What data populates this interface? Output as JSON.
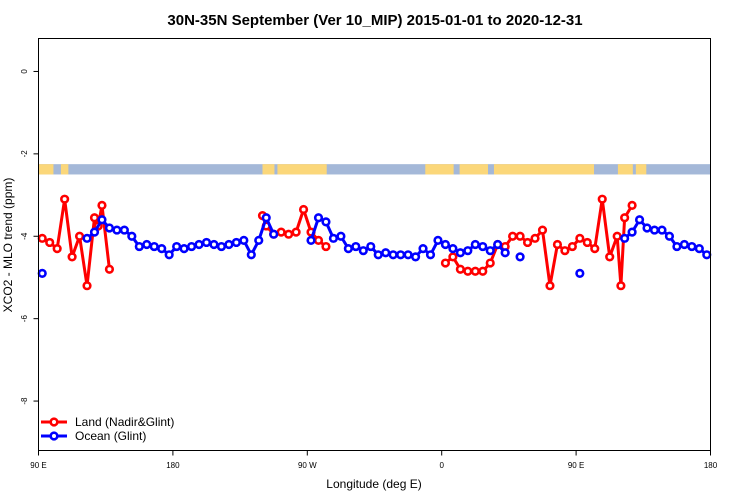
{
  "chart_data": {
    "type": "line",
    "title": "30N-35N September (Ver 10_MIP)   2015-01-01 to 2020-12-31",
    "xlabel": "Longitude (deg E)",
    "ylabel": "XCO2 - MLO trend (ppm)",
    "xlim": [
      90,
      540
    ],
    "ylim": [
      -9.2,
      0.8
    ],
    "x_ticks": [
      {
        "value": 90,
        "label": "90 E"
      },
      {
        "value": 180,
        "label": "180"
      },
      {
        "value": 270,
        "label": "90 W"
      },
      {
        "value": 360,
        "label": "0"
      },
      {
        "value": 450,
        "label": "90 E"
      },
      {
        "value": 540,
        "label": "180"
      }
    ],
    "y_ticks": [
      {
        "value": 0,
        "label": "0"
      },
      {
        "value": -2,
        "label": "-2"
      },
      {
        "value": -4,
        "label": "-4"
      },
      {
        "value": -6,
        "label": "-6"
      },
      {
        "value": -8,
        "label": "-8"
      }
    ],
    "grid": false,
    "legend_position": "bottom-left",
    "land_mask_band": {
      "y_range": [
        -2.5,
        -2.25
      ],
      "ocean_color": "#a4b8d8",
      "land_color": "#fbd77a",
      "land_x_ranges": [
        [
          90,
          100
        ],
        [
          105,
          110
        ],
        [
          240,
          248
        ],
        [
          250,
          283
        ],
        [
          349,
          368
        ],
        [
          372,
          391
        ],
        [
          395,
          462
        ],
        [
          478,
          488
        ],
        [
          490,
          497
        ]
      ]
    },
    "series": [
      {
        "name": "Land (Nadir&Glint)",
        "color": "#ff0000",
        "x": [
          92.5,
          97.5,
          102.5,
          107.5,
          112.5,
          117.5,
          122.5,
          127.5,
          130,
          132.5,
          137.5,
          240,
          242.5,
          247.5,
          252.5,
          257.5,
          262.5,
          267.5,
          272.5,
          277.5,
          282.5,
          362.5,
          367.5,
          372.5,
          377.5,
          382.5,
          387.5,
          392.5,
          397.5,
          402.5,
          407.5,
          412.5,
          417.5,
          422.5,
          427.5,
          432.5,
          437.5,
          442.5,
          447.5,
          452.5,
          457.5,
          462.5,
          467.5,
          472.5,
          477.5,
          480,
          482.5,
          487.5
        ],
        "y": [
          -4.05,
          -4.15,
          -4.3,
          -3.1,
          -4.5,
          -4.0,
          -5.2,
          -3.55,
          -3.75,
          -3.25,
          -4.8,
          -3.5,
          -3.75,
          -3.95,
          -3.9,
          -3.95,
          -3.9,
          -3.35,
          -3.9,
          -4.1,
          -4.25,
          -4.65,
          -4.5,
          -4.8,
          -4.85,
          -4.85,
          -4.85,
          -4.65,
          -4.2,
          -4.25,
          -4.0,
          -4.0,
          -4.15,
          -4.05,
          -3.85,
          -5.2,
          -4.2,
          -4.35,
          -4.25,
          -4.05,
          -4.15,
          -4.3,
          -3.1,
          -4.5,
          -4.0,
          -5.2,
          -3.55,
          -3.25
        ]
      },
      {
        "name": "Ocean (Glint)",
        "color": "#0000ff",
        "x": [
          92.5,
          122.5,
          127.5,
          132.5,
          137.5,
          142.5,
          147.5,
          152.5,
          157.5,
          162.5,
          167.5,
          172.5,
          177.5,
          182.5,
          187.5,
          192.5,
          197.5,
          202.5,
          207.5,
          212.5,
          217.5,
          222.5,
          227.5,
          232.5,
          237.5,
          242.5,
          247.5,
          272.5,
          277.5,
          282.5,
          287.5,
          292.5,
          297.5,
          302.5,
          307.5,
          312.5,
          317.5,
          322.5,
          327.5,
          332.5,
          337.5,
          342.5,
          347.5,
          352.5,
          357.5,
          362.5,
          367.5,
          372.5,
          377.5,
          382.5,
          387.5,
          392.5,
          397.5,
          402.5,
          412.5,
          452.5,
          482.5,
          487.5,
          492.5,
          497.5,
          502.5,
          507.5,
          512.5,
          517.5,
          522.5,
          527.5,
          532.5,
          537.5
        ],
        "y": [
          -4.9,
          -4.05,
          -3.9,
          -3.6,
          -3.8,
          -3.85,
          -3.85,
          -4.0,
          -4.25,
          -4.2,
          -4.25,
          -4.3,
          -4.45,
          -4.25,
          -4.3,
          -4.25,
          -4.2,
          -4.15,
          -4.2,
          -4.25,
          -4.2,
          -4.15,
          -4.1,
          -4.45,
          -4.1,
          -3.55,
          -3.95,
          -4.1,
          -3.55,
          -3.65,
          -4.05,
          -4.0,
          -4.3,
          -4.25,
          -4.35,
          -4.25,
          -4.45,
          -4.4,
          -4.45,
          -4.45,
          -4.45,
          -4.5,
          -4.3,
          -4.45,
          -4.1,
          -4.2,
          -4.3,
          -4.4,
          -4.35,
          -4.2,
          -4.25,
          -4.35,
          -4.2,
          -4.4,
          -4.5,
          -4.9,
          -4.05,
          -3.9,
          -3.6,
          -3.8,
          -3.85,
          -3.85,
          -4.0,
          -4.25,
          -4.2,
          -4.25,
          -4.3,
          -4.45
        ]
      }
    ]
  }
}
